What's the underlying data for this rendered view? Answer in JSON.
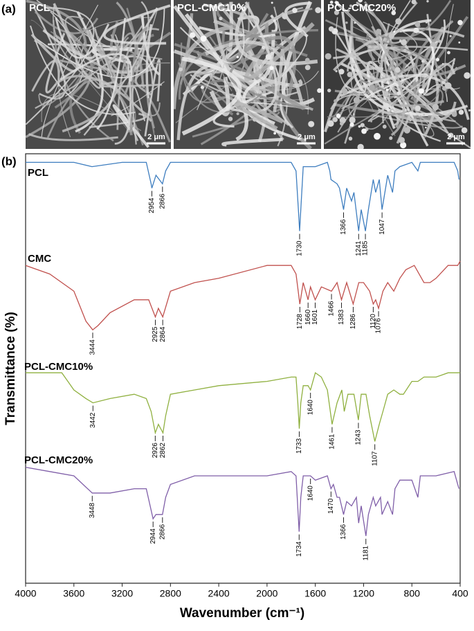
{
  "panel_a": {
    "label": "(a)",
    "images": [
      {
        "label": "PCL",
        "scale": "2 μm"
      },
      {
        "label": "PCL-CMC10%",
        "scale": "2 μm"
      },
      {
        "label": "PCL-CMC20%",
        "scale": "2 μm"
      }
    ]
  },
  "chart_data": {
    "type": "line",
    "panel_label": "(b)",
    "x_label": "Wavenumber (cm⁻¹)",
    "y_label": "Transmittance (%)",
    "xlim": [
      4000,
      400
    ],
    "xticks": [
      4000,
      3600,
      3200,
      2800,
      2400,
      2000,
      1600,
      1200,
      800,
      400
    ],
    "ylim": [
      0,
      100
    ],
    "series": [
      {
        "name": "PCL",
        "color": "#3d7dbf",
        "x": [
          4000,
          3600,
          3450,
          3200,
          3000,
          2960,
          2954,
          2920,
          2866,
          2840,
          2800,
          2400,
          2000,
          1800,
          1760,
          1740,
          1730,
          1720,
          1700,
          1600,
          1500,
          1480,
          1470,
          1420,
          1400,
          1366,
          1340,
          1300,
          1280,
          1241,
          1220,
          1185,
          1160,
          1120,
          1100,
          1070,
          1047,
          1000,
          960,
          940,
          900,
          800,
          750,
          730,
          600,
          450,
          420,
          410
        ],
        "values": [
          98,
          98,
          97,
          98,
          98,
          93,
          92,
          95,
          93,
          96,
          98,
          98,
          98,
          98,
          96,
          87,
          82,
          87,
          97,
          97,
          98,
          96,
          94,
          93,
          92,
          87,
          92,
          89,
          91,
          82,
          87,
          82,
          87,
          94,
          91,
          94,
          87,
          95,
          91,
          96,
          97,
          98,
          96,
          98,
          98,
          98,
          96,
          94
        ],
        "peaks": [
          2954,
          2866,
          1730,
          1366,
          1241,
          1185,
          1047
        ]
      },
      {
        "name": "CMC",
        "color": "#c0504d",
        "x": [
          4000,
          3800,
          3600,
          3500,
          3444,
          3400,
          3300,
          3100,
          2980,
          2925,
          2900,
          2864,
          2800,
          2600,
          2400,
          2000,
          1800,
          1760,
          1728,
          1700,
          1660,
          1640,
          1601,
          1550,
          1466,
          1420,
          1383,
          1340,
          1286,
          1240,
          1200,
          1150,
          1120,
          1100,
          1076,
          1040,
          1000,
          950,
          900,
          850,
          780,
          700,
          650,
          600,
          500,
          420,
          400
        ],
        "values": [
          74,
          72,
          68,
          61,
          59,
          60,
          63,
          66,
          66,
          62,
          64,
          62,
          68,
          70,
          71,
          74,
          74,
          72,
          65,
          70,
          66,
          69,
          66,
          69,
          68,
          70,
          66,
          70,
          65,
          70,
          70,
          68,
          65,
          66,
          64,
          68,
          70,
          68,
          71,
          73,
          74,
          70,
          70,
          71,
          74,
          74,
          75
        ],
        "peaks": [
          3444,
          2925,
          2864,
          1728,
          1660,
          1601,
          1466,
          1383,
          1286,
          1120,
          1076
        ]
      },
      {
        "name": "PCL-CMC10%",
        "color": "#8fb03f",
        "x": [
          4000,
          3700,
          3650,
          3600,
          3500,
          3442,
          3300,
          3100,
          3000,
          2960,
          2926,
          2900,
          2862,
          2840,
          2800,
          2600,
          2400,
          2000,
          1800,
          1760,
          1745,
          1733,
          1720,
          1700,
          1660,
          1640,
          1620,
          1600,
          1550,
          1500,
          1461,
          1420,
          1380,
          1360,
          1330,
          1300,
          1280,
          1243,
          1220,
          1180,
          1150,
          1107,
          1070,
          1040,
          1000,
          950,
          900,
          870,
          800,
          750,
          700,
          600,
          500,
          400
        ],
        "values": [
          49,
          49,
          47,
          45,
          43,
          42,
          43,
          44,
          43,
          40,
          35,
          37,
          35,
          39,
          44,
          45,
          46,
          47,
          48,
          48,
          42,
          36,
          42,
          46,
          46,
          45,
          47,
          49,
          48,
          45,
          37,
          42,
          45,
          40,
          44,
          44,
          44,
          38,
          44,
          44,
          39,
          33,
          37,
          40,
          44,
          45,
          44,
          44,
          47,
          47,
          48,
          48,
          49,
          49
        ],
        "peaks": [
          3442,
          2926,
          2862,
          1733,
          1640,
          1461,
          1243,
          1107
        ]
      },
      {
        "name": "PCL-CMC20%",
        "color": "#7f5ea8",
        "x": [
          4000,
          3800,
          3600,
          3448,
          3300,
          3100,
          3000,
          2944,
          2920,
          2866,
          2840,
          2800,
          2600,
          2400,
          2000,
          1800,
          1760,
          1734,
          1720,
          1700,
          1640,
          1600,
          1500,
          1470,
          1450,
          1420,
          1400,
          1366,
          1340,
          1300,
          1260,
          1241,
          1220,
          1181,
          1160,
          1120,
          1100,
          1060,
          1047,
          1000,
          960,
          940,
          900,
          800,
          750,
          730,
          600,
          450,
          420,
          410
        ],
        "values": [
          27,
          26,
          25,
          21,
          21,
          22,
          22,
          15,
          16,
          16,
          20,
          23,
          25,
          25,
          25,
          26,
          25,
          12,
          20,
          25,
          25,
          24,
          25,
          22,
          23,
          20,
          20,
          16,
          19,
          18,
          20,
          14,
          18,
          11,
          16,
          20,
          18,
          20,
          16,
          19,
          16,
          22,
          24,
          24,
          20,
          25,
          25,
          26,
          23,
          22
        ],
        "peaks": [
          3448,
          2944,
          2866,
          1734,
          1640,
          1470,
          1366,
          1181
        ]
      }
    ]
  }
}
